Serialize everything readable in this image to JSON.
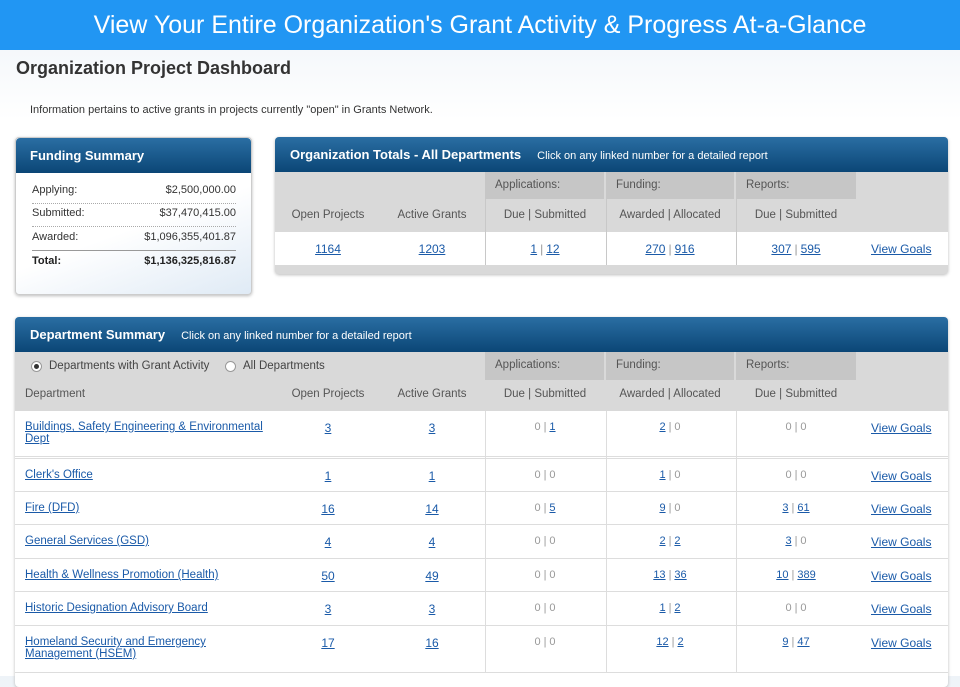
{
  "banner": "View Your Entire Organization's Grant Activity & Progress At-a-Glance",
  "page_title": "Organization Project Dashboard",
  "info": "Information pertains to active grants in projects currently \"open\" in Grants Network.",
  "separator": "|",
  "goals_label": "View Goals",
  "funding_summary": {
    "title": "Funding Summary",
    "rows": [
      [
        "Applying:",
        "$2,500,000.00"
      ],
      [
        "Submitted:",
        "$37,470,415.00"
      ],
      [
        "Awarded:",
        "$1,096,355,401.87"
      ],
      [
        "Total:",
        "$1,136,325,816.87"
      ]
    ]
  },
  "org_totals": {
    "title": "Organization Totals - All Departments",
    "hint": "Click on any linked number for a detailed report",
    "groups": [
      "Applications:",
      "Funding:",
      "Reports:"
    ],
    "columns": [
      "Open Projects",
      "Active Grants",
      "Due | Submitted",
      "Awarded | Allocated",
      "Due | Submitted"
    ],
    "open_projects": 1164,
    "active_grants": 1203,
    "applications": [
      1,
      12
    ],
    "funding": [
      270,
      916
    ],
    "reports": [
      307,
      595
    ]
  },
  "department_summary": {
    "title": "Department Summary",
    "hint": "Click on any linked number for a detailed report",
    "filters": [
      "Departments with Grant Activity",
      "All Departments"
    ],
    "groups": [
      "Applications:",
      "Funding:",
      "Reports:"
    ],
    "columns": [
      "Department",
      "Open Projects",
      "Active Grants",
      "Due | Submitted",
      "Awarded | Allocated",
      "Due | Submitted"
    ],
    "rows": [
      {
        "name": "Buildings, Safety Engineering & Environmental Dept",
        "open_projects": 3,
        "active_grants": 3,
        "applications": [
          0,
          1
        ],
        "funding": [
          2,
          0
        ],
        "reports": [
          0,
          0
        ]
      },
      {
        "name": "Clerk's Office",
        "open_projects": 1,
        "active_grants": 1,
        "applications": [
          0,
          0
        ],
        "funding": [
          1,
          0
        ],
        "reports": [
          0,
          0
        ]
      },
      {
        "name": "Fire (DFD)",
        "open_projects": 16,
        "active_grants": 14,
        "applications": [
          0,
          5
        ],
        "funding": [
          9,
          0
        ],
        "reports": [
          3,
          61
        ]
      },
      {
        "name": "General Services (GSD)",
        "open_projects": 4,
        "active_grants": 4,
        "applications": [
          0,
          0
        ],
        "funding": [
          2,
          2
        ],
        "reports": [
          3,
          0
        ]
      },
      {
        "name": "Health & Wellness Promotion (Health)",
        "open_projects": 50,
        "active_grants": 49,
        "applications": [
          0,
          0
        ],
        "funding": [
          13,
          36
        ],
        "reports": [
          10,
          389
        ]
      },
      {
        "name": "Historic Designation Advisory Board",
        "open_projects": 3,
        "active_grants": 3,
        "applications": [
          0,
          0
        ],
        "funding": [
          1,
          2
        ],
        "reports": [
          0,
          0
        ]
      },
      {
        "name": "Homeland Security and Emergency Management (HSEM)",
        "open_projects": 17,
        "active_grants": 16,
        "applications": [
          0,
          0
        ],
        "funding": [
          12,
          2
        ],
        "reports": [
          9,
          47
        ]
      }
    ]
  }
}
